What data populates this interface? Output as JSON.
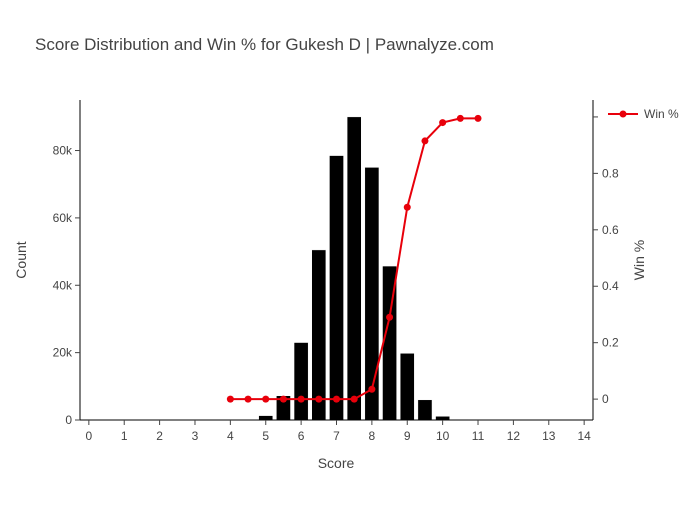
{
  "chart_data": {
    "title": "Score Distribution and Win % for Gukesh D | Pawnalyze.com",
    "xlabel": "Score",
    "ylabel_left": "Count",
    "ylabel_right": "Win %",
    "x_range": [
      -0.25,
      14.25
    ],
    "y_left_range": [
      0,
      95000
    ],
    "y_right_range": [
      -0.074,
      1.06
    ],
    "x_ticks": [
      0,
      1,
      2,
      3,
      4,
      5,
      6,
      7,
      8,
      9,
      10,
      11,
      12,
      13,
      14
    ],
    "y_left_ticks": [
      {
        "value": 0,
        "label": "0"
      },
      {
        "value": 20000,
        "label": "20k"
      },
      {
        "value": 40000,
        "label": "40k"
      },
      {
        "value": 60000,
        "label": "60k"
      },
      {
        "value": 80000,
        "label": "80k"
      }
    ],
    "y_right_ticks": [
      {
        "value": 0,
        "label": "0"
      },
      {
        "value": 0.2,
        "label": "0.2"
      },
      {
        "value": 0.4,
        "label": "0.4"
      },
      {
        "value": 0.6,
        "label": "0.6"
      },
      {
        "value": 0.8,
        "label": "0.8"
      },
      {
        "value": 1.0,
        "label": ""
      }
    ],
    "bars": {
      "type": "bar",
      "width": 0.4,
      "color": "#000000",
      "x": [
        4,
        4.5,
        5,
        5.5,
        6,
        6.5,
        7,
        7.5,
        8,
        8.5,
        9,
        9.5,
        10,
        10.5,
        11
      ],
      "values": [
        10,
        100,
        1300,
        7200,
        23000,
        50500,
        78500,
        90000,
        75000,
        45700,
        19800,
        6000,
        1100,
        150,
        10
      ]
    },
    "line": {
      "type": "line",
      "name": "Win %",
      "color": "#e8000b",
      "x": [
        4,
        4.5,
        5,
        5.5,
        6,
        6.5,
        7,
        7.5,
        8,
        8.5,
        9,
        9.5,
        10,
        10.5,
        11
      ],
      "values": [
        0,
        0,
        0,
        0,
        0,
        0,
        0,
        0,
        0.035,
        0.29,
        0.68,
        0.915,
        0.98,
        0.995,
        0.995
      ]
    },
    "legend_position": "top-right",
    "grid": false
  }
}
